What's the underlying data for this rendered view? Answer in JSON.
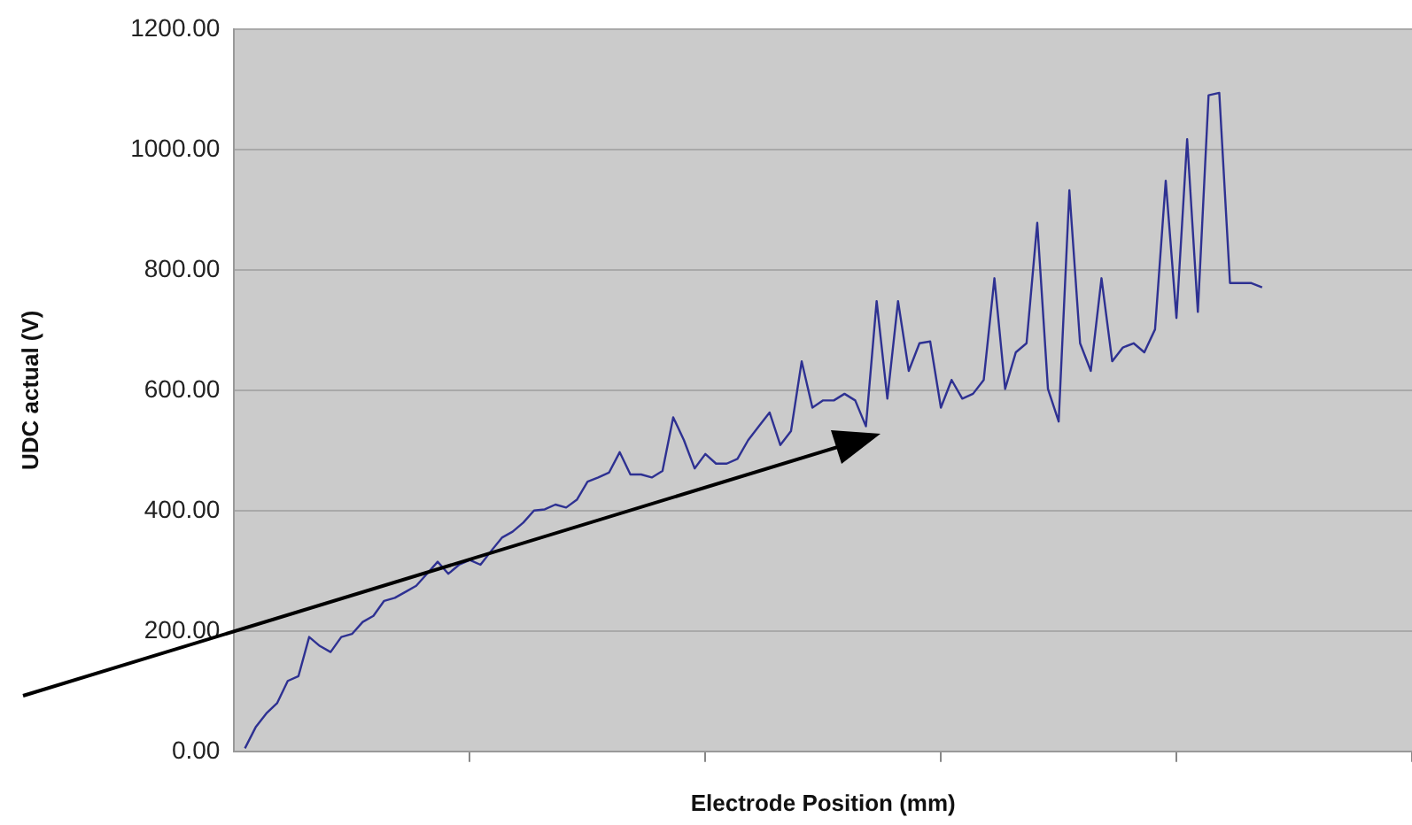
{
  "chart_data": {
    "type": "line",
    "xlabel": "Electrode Position (mm)",
    "ylabel": "UDC actual (V)",
    "categories": [
      null,
      null,
      null,
      null,
      null,
      null,
      null,
      null,
      null,
      null,
      null,
      null,
      null,
      null,
      null,
      null,
      null,
      null,
      null,
      null,
      null,
      null,
      null,
      null,
      null,
      null,
      null,
      null,
      null,
      null,
      null,
      null,
      null,
      null,
      null,
      null,
      null,
      null,
      null,
      null,
      null,
      null,
      null,
      null,
      null,
      null,
      null,
      null,
      null,
      null,
      null,
      null,
      null,
      null,
      null,
      null,
      null,
      null,
      null,
      null,
      null,
      null,
      null,
      null,
      null,
      null,
      null,
      null,
      null,
      null,
      null,
      null,
      null,
      null,
      null,
      null,
      null,
      null,
      null,
      null,
      null,
      null,
      null,
      null,
      null,
      null,
      null,
      null,
      null,
      null,
      null,
      null,
      null,
      null,
      null,
      null,
      null,
      null,
      null,
      null,
      null,
      null,
      null,
      null,
      null,
      null,
      null,
      null,
      null,
      null,
      null
    ],
    "series": [
      {
        "color": "#2e3192",
        "values": [
          null,
          5,
          40,
          63,
          80,
          117,
          125,
          190,
          175,
          165,
          190,
          195,
          215,
          225,
          250,
          255,
          265,
          275,
          295,
          315,
          295,
          310,
          318,
          310,
          333,
          355,
          365,
          380,
          400,
          402,
          410,
          405,
          418,
          448,
          455,
          463,
          497,
          460,
          460,
          455,
          466,
          555,
          517,
          470,
          494,
          478,
          478,
          486,
          517,
          540,
          563,
          509,
          532,
          648,
          571,
          583,
          583,
          594,
          583,
          540,
          748,
          586,
          748,
          632,
          678,
          681,
          571,
          617,
          586,
          594,
          617,
          786,
          602,
          663,
          678,
          878,
          602,
          548,
          932,
          678,
          632,
          786,
          648,
          671,
          678,
          663,
          701,
          948,
          720,
          1017,
          730,
          1090,
          1094,
          778,
          778,
          778,
          771,
          null,
          null,
          null,
          null,
          null,
          null,
          null,
          null,
          null,
          null,
          null,
          null,
          null,
          null
        ]
      }
    ],
    "ylim": [
      0,
      1200
    ],
    "yticks": [
      {
        "value": 0,
        "label": "0.00"
      },
      {
        "value": 200,
        "label": "200.00"
      },
      {
        "value": 400,
        "label": "400.00"
      },
      {
        "value": 600,
        "label": "600.00"
      },
      {
        "value": 800,
        "label": "800.00"
      },
      {
        "value": 1000,
        "label": "1000.00"
      },
      {
        "value": 1200,
        "label": "1200.00"
      }
    ],
    "grid": "y",
    "legend": false,
    "marker": "none",
    "line_style": "solid",
    "tick_labels": "y"
  }
}
